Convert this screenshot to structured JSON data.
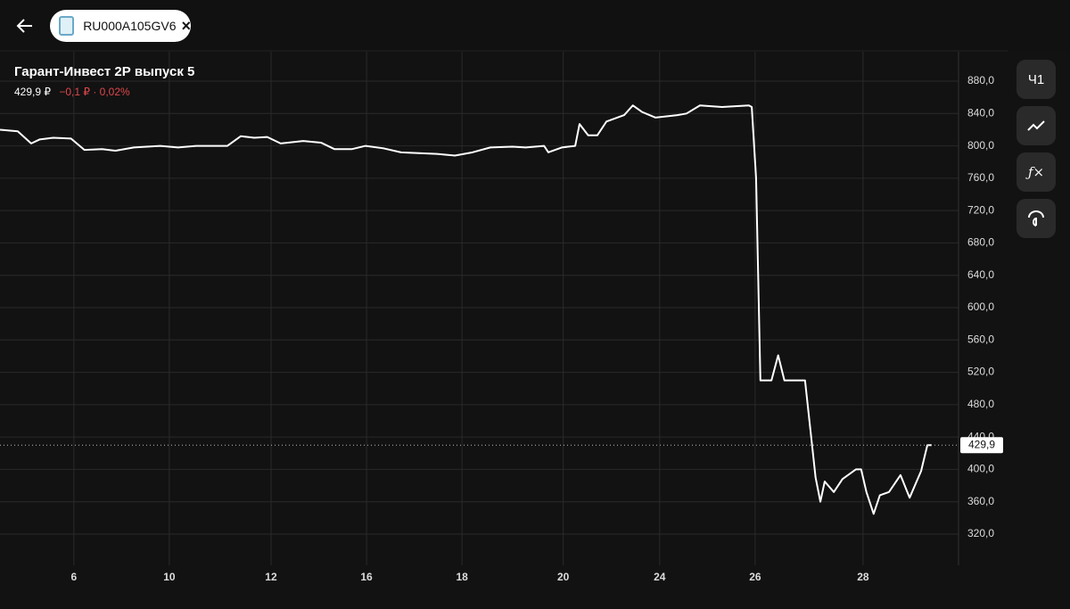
{
  "header": {
    "tab": "RU000A105GV6"
  },
  "instrument": {
    "title": "Гарант-Инвест 2Р выпуск 5",
    "price": "429,9 ₽",
    "change": "−0,1 ₽ · 0,02%"
  },
  "toolbar": {
    "interval": "Ч1"
  },
  "chart_data": {
    "type": "line",
    "series": [
      {
        "color": "#ffffff",
        "x": [
          -1.54,
          -1.17,
          -0.89,
          -0.71,
          -0.43,
          -0.06,
          0.22,
          0.59,
          0.87,
          1.25,
          1.8,
          2.17,
          2.55,
          3.2,
          3.48,
          3.76,
          4.03,
          4.31,
          4.78,
          5.15,
          5.43,
          5.8,
          6.08,
          6.45,
          6.82,
          7.19,
          7.57,
          7.94,
          8.31,
          8.68,
          9.14,
          9.42,
          9.8,
          9.89,
          10.17,
          10.45,
          10.54,
          10.72,
          10.91,
          11.1,
          11.47,
          11.65,
          11.84,
          12.12,
          12.58,
          12.77,
          13.05,
          13.51,
          14.07,
          14.13,
          14.22,
          14.31,
          14.54,
          14.68,
          14.81,
          15.24,
          15.46,
          15.56,
          15.65,
          15.84,
          16.02,
          16.3,
          16.41,
          16.52,
          16.67,
          16.8,
          16.99,
          17.23,
          17.42,
          17.66,
          17.79,
          17.88
        ],
        "values": [
          820,
          818,
          803,
          808,
          810,
          809,
          795,
          796,
          794,
          798,
          800,
          798,
          800,
          800,
          812,
          810,
          811,
          803,
          806,
          804,
          796,
          796,
          800,
          797,
          792,
          791,
          790,
          788,
          792,
          798,
          799,
          798,
          800,
          792,
          798,
          800,
          827,
          813,
          813,
          830,
          838,
          850,
          842,
          835,
          838,
          840,
          850,
          848,
          850,
          848,
          760,
          510,
          510,
          541,
          510,
          510,
          390,
          360,
          385,
          372,
          388,
          400,
          400,
          372,
          345,
          368,
          372,
          393,
          365,
          398,
          430,
          429.9
        ]
      }
    ],
    "current": {
      "value": 429.9,
      "label": "429,9"
    },
    "xlim": [
      -1.54,
      18.44
    ],
    "xticks": [
      {
        "value": 0,
        "label": "6"
      },
      {
        "value": 1.99,
        "label": "10"
      },
      {
        "value": 4.11,
        "label": "12"
      },
      {
        "value": 6.1,
        "label": "16"
      },
      {
        "value": 8.09,
        "label": "18"
      },
      {
        "value": 10.2,
        "label": "20"
      },
      {
        "value": 12.21,
        "label": "24"
      },
      {
        "value": 14.2,
        "label": "26"
      },
      {
        "value": 16.45,
        "label": "28"
      }
    ],
    "ylim": [
      281.4,
      916.4
    ],
    "yticks": [
      {
        "value": 320,
        "label": "320,0"
      },
      {
        "value": 360,
        "label": "360,0"
      },
      {
        "value": 400,
        "label": "400,0"
      },
      {
        "value": 440,
        "label": "440,0"
      },
      {
        "value": 480,
        "label": "480,0"
      },
      {
        "value": 520,
        "label": "520,0"
      },
      {
        "value": 560,
        "label": "560,0"
      },
      {
        "value": 600,
        "label": "600,0"
      },
      {
        "value": 640,
        "label": "640,0"
      },
      {
        "value": 680,
        "label": "680,0"
      },
      {
        "value": 720,
        "label": "720,0"
      },
      {
        "value": 760,
        "label": "760,0"
      },
      {
        "value": 800,
        "label": "800,0"
      },
      {
        "value": 840,
        "label": "840,0"
      },
      {
        "value": 880,
        "label": "880,0"
      }
    ],
    "grid": true
  }
}
